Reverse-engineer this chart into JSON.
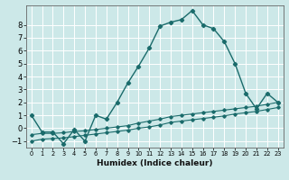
{
  "xlabel": "Humidex (Indice chaleur)",
  "ylabel": "",
  "background_color": "#cce8e8",
  "line_color": "#1a6b6b",
  "grid_color": "#ffffff",
  "xlim": [
    -0.5,
    23.5
  ],
  "ylim": [
    -1.5,
    9.5
  ],
  "xticks": [
    0,
    1,
    2,
    3,
    4,
    5,
    6,
    7,
    8,
    9,
    10,
    11,
    12,
    13,
    14,
    15,
    16,
    17,
    18,
    19,
    20,
    21,
    22,
    23
  ],
  "yticks": [
    -1,
    0,
    1,
    2,
    3,
    4,
    5,
    6,
    7,
    8
  ],
  "main_line": {
    "x": [
      0,
      1,
      2,
      3,
      4,
      5,
      6,
      7,
      8,
      9,
      10,
      11,
      12,
      13,
      14,
      15,
      16,
      17,
      18,
      19,
      20,
      21,
      22,
      23
    ],
    "y": [
      1.0,
      -0.3,
      -0.3,
      -1.2,
      -0.1,
      -1.0,
      1.0,
      0.7,
      2.0,
      3.5,
      4.8,
      6.2,
      7.9,
      8.2,
      8.4,
      9.1,
      8.0,
      7.7,
      6.7,
      5.0,
      2.7,
      1.5,
      2.7,
      2.0
    ]
  },
  "line2": {
    "x": [
      0,
      1,
      2,
      3,
      4,
      5,
      6,
      7,
      8,
      9,
      10,
      11,
      12,
      13,
      14,
      15,
      16,
      17,
      18,
      19,
      20,
      21,
      22,
      23
    ],
    "y": [
      -0.5,
      -0.4,
      -0.4,
      -0.35,
      -0.25,
      -0.2,
      -0.1,
      0.0,
      0.1,
      0.2,
      0.4,
      0.55,
      0.7,
      0.9,
      1.0,
      1.1,
      1.2,
      1.3,
      1.4,
      1.5,
      1.6,
      1.7,
      1.85,
      2.0
    ]
  },
  "line3": {
    "x": [
      0,
      1,
      2,
      3,
      4,
      5,
      6,
      7,
      8,
      9,
      10,
      11,
      12,
      13,
      14,
      15,
      16,
      17,
      18,
      19,
      20,
      21,
      22,
      23
    ],
    "y": [
      -1.0,
      -0.85,
      -0.8,
      -0.75,
      -0.65,
      -0.55,
      -0.45,
      -0.35,
      -0.25,
      -0.15,
      0.0,
      0.1,
      0.25,
      0.45,
      0.55,
      0.65,
      0.75,
      0.85,
      0.95,
      1.1,
      1.2,
      1.3,
      1.45,
      1.6
    ]
  }
}
